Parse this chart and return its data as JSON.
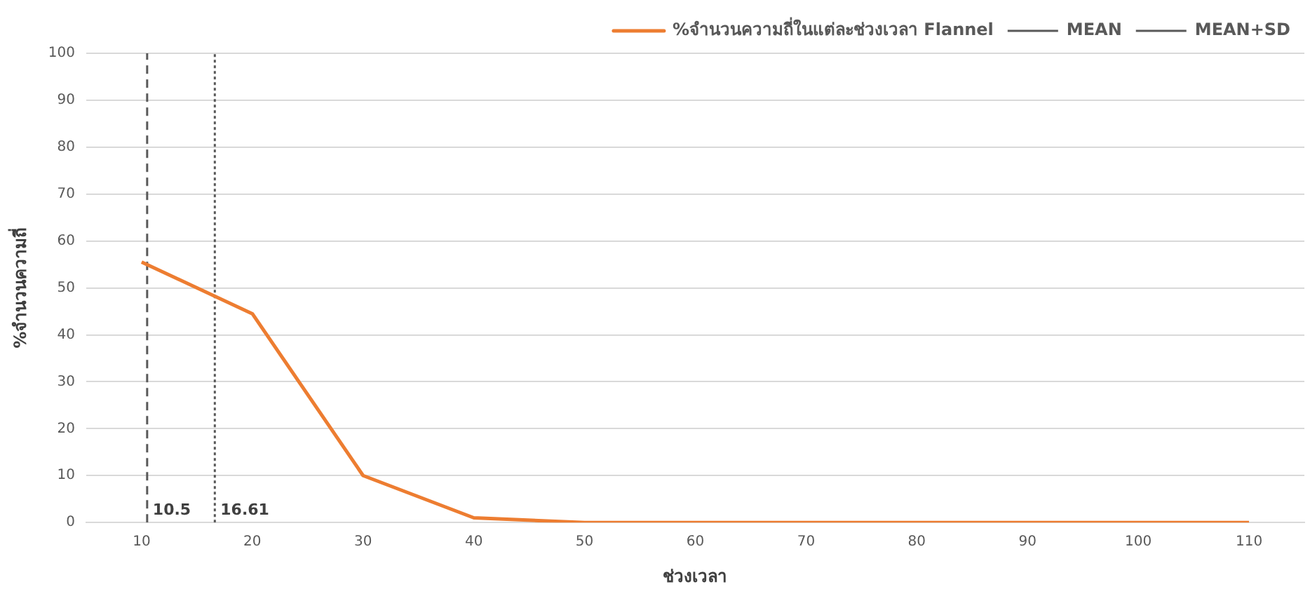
{
  "chart_data": {
    "type": "line",
    "xlabel": "ช่วงเวลา",
    "ylabel": "%จำนวนความถี่",
    "x": [
      10,
      20,
      30,
      40,
      50,
      60,
      70,
      80,
      90,
      100,
      110
    ],
    "series": [
      {
        "name": "%จำนวนความถี่ในแต่ละช่วงเวลา Flannel",
        "color": "#ed7d31",
        "values": [
          55.5,
          44.5,
          10,
          1,
          0,
          0,
          0,
          0,
          0,
          0,
          0
        ]
      }
    ],
    "xlim": [
      5,
      115
    ],
    "xticks": [
      10,
      20,
      30,
      40,
      50,
      60,
      70,
      80,
      90,
      100,
      110
    ],
    "ylim": [
      0,
      100
    ],
    "yticks": [
      0,
      10,
      20,
      30,
      40,
      50,
      60,
      70,
      80,
      90,
      100
    ],
    "ref_lines": [
      {
        "axis": "x",
        "value": 10.5,
        "label": "MEAN",
        "color": "#595959",
        "line_style": "dashed"
      },
      {
        "axis": "x",
        "value": 16.61,
        "label": "MEAN+SD",
        "color": "#595959",
        "line_style": "dotted"
      }
    ],
    "annotations": [
      {
        "text": "10.5",
        "x": 10.5,
        "y": 0
      },
      {
        "text": "16.61",
        "x": 16.61,
        "y": 0
      }
    ],
    "grid": "y",
    "legend": "top right",
    "marker": "none",
    "line_style": "solid"
  }
}
